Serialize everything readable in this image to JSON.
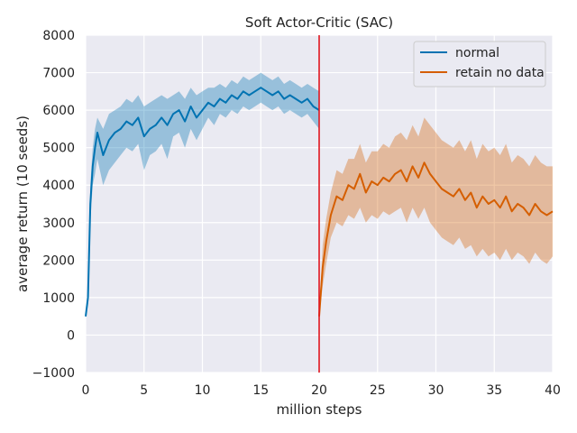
{
  "chart_data": {
    "type": "line",
    "title": "Soft Actor-Critic (SAC)",
    "xlabel": "million steps",
    "ylabel": "average return (10 seeds)",
    "xlim": [
      0,
      40
    ],
    "ylim": [
      -1000,
      8000
    ],
    "xticks": [
      0,
      5,
      10,
      15,
      20,
      25,
      30,
      35,
      40
    ],
    "yticks": [
      -1000,
      0,
      1000,
      2000,
      3000,
      4000,
      5000,
      6000,
      7000,
      8000
    ],
    "grid": true,
    "legend_position": "top-right",
    "vline": {
      "x": 20,
      "color": "#e0141e"
    },
    "series": [
      {
        "name": "normal",
        "color": "#0173b2",
        "x": [
          0,
          0.2,
          0.4,
          0.6,
          0.8,
          1,
          1.5,
          2,
          2.5,
          3,
          3.5,
          4,
          4.5,
          5,
          5.5,
          6,
          6.5,
          7,
          7.5,
          8,
          8.5,
          9,
          9.5,
          10,
          10.5,
          11,
          11.5,
          12,
          12.5,
          13,
          13.5,
          14,
          14.5,
          15,
          15.5,
          16,
          16.5,
          17,
          17.5,
          18,
          18.5,
          19,
          19.5,
          20
        ],
        "y": [
          500,
          1000,
          3500,
          4500,
          5000,
          5400,
          4800,
          5200,
          5400,
          5500,
          5700,
          5600,
          5800,
          5300,
          5500,
          5600,
          5800,
          5600,
          5900,
          6000,
          5700,
          6100,
          5800,
          6000,
          6200,
          6100,
          6300,
          6200,
          6400,
          6300,
          6500,
          6400,
          6500,
          6600,
          6500,
          6400,
          6500,
          6300,
          6400,
          6300,
          6200,
          6300,
          6100,
          6000
        ],
        "lower": [
          500,
          800,
          3000,
          4000,
          4300,
          4700,
          4000,
          4400,
          4600,
          4800,
          5000,
          4900,
          5100,
          4400,
          4800,
          4900,
          5100,
          4700,
          5300,
          5400,
          5000,
          5500,
          5200,
          5500,
          5800,
          5600,
          5900,
          5800,
          6000,
          5900,
          6100,
          6000,
          6100,
          6200,
          6100,
          6000,
          6100,
          5900,
          6000,
          5900,
          5800,
          5900,
          5700,
          5500
        ],
        "upper": [
          550,
          1200,
          4000,
          5000,
          5500,
          5800,
          5500,
          5900,
          6000,
          6100,
          6300,
          6200,
          6400,
          6100,
          6200,
          6300,
          6400,
          6300,
          6400,
          6500,
          6300,
          6600,
          6400,
          6500,
          6600,
          6600,
          6700,
          6600,
          6800,
          6700,
          6900,
          6800,
          6900,
          7000,
          6900,
          6800,
          6900,
          6700,
          6800,
          6700,
          6600,
          6700,
          6600,
          6500
        ]
      },
      {
        "name": "retain no data",
        "color": "#d55e00",
        "x": [
          20,
          20.3,
          20.6,
          21,
          21.5,
          22,
          22.5,
          23,
          23.5,
          24,
          24.5,
          25,
          25.5,
          26,
          26.5,
          27,
          27.5,
          28,
          28.5,
          29,
          29.5,
          30,
          30.5,
          31,
          31.5,
          32,
          32.5,
          33,
          33.5,
          34,
          34.5,
          35,
          35.5,
          36,
          36.5,
          37,
          37.5,
          38,
          38.5,
          39,
          39.5,
          40
        ],
        "y": [
          500,
          1800,
          2500,
          3200,
          3700,
          3600,
          4000,
          3900,
          4300,
          3800,
          4100,
          4000,
          4200,
          4100,
          4300,
          4400,
          4100,
          4500,
          4200,
          4600,
          4300,
          4100,
          3900,
          3800,
          3700,
          3900,
          3600,
          3800,
          3400,
          3700,
          3500,
          3600,
          3400,
          3700,
          3300,
          3500,
          3400,
          3200,
          3500,
          3300,
          3200,
          3300
        ],
        "lower": [
          500,
          1300,
          1900,
          2600,
          3000,
          2900,
          3200,
          3100,
          3400,
          3000,
          3200,
          3100,
          3300,
          3200,
          3300,
          3400,
          3000,
          3400,
          3100,
          3400,
          3000,
          2800,
          2600,
          2500,
          2400,
          2600,
          2300,
          2400,
          2100,
          2300,
          2100,
          2200,
          2000,
          2300,
          2000,
          2200,
          2100,
          1900,
          2200,
          2000,
          1900,
          2100
        ],
        "upper": [
          600,
          2400,
          3100,
          3800,
          4400,
          4300,
          4700,
          4700,
          5100,
          4600,
          4900,
          4900,
          5100,
          5000,
          5300,
          5400,
          5200,
          5600,
          5300,
          5800,
          5600,
          5400,
          5200,
          5100,
          5000,
          5200,
          4900,
          5200,
          4700,
          5100,
          4900,
          5000,
          4800,
          5100,
          4600,
          4800,
          4700,
          4500,
          4800,
          4600,
          4500,
          4500
        ]
      }
    ]
  }
}
